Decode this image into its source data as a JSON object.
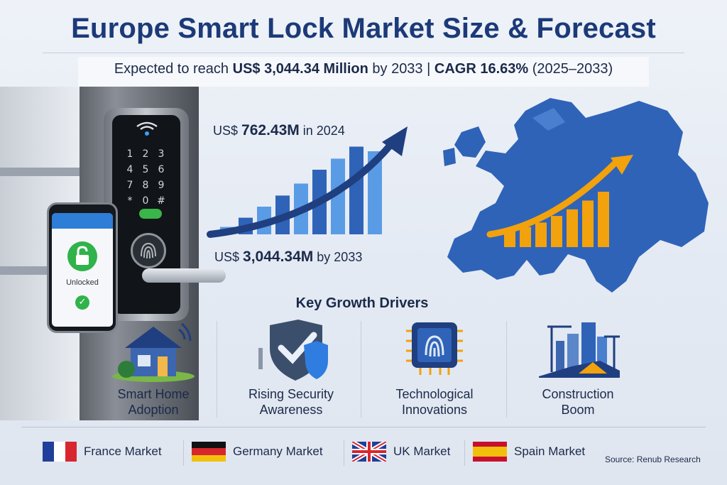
{
  "header": {
    "title": "Europe Smart Lock Market Size & Forecast",
    "subtitle_prefix": "Expected to reach ",
    "subtitle_value": "US$ 3,044.34 Million",
    "subtitle_mid": " by 2033 | ",
    "subtitle_cagr": "CAGR 16.63%",
    "subtitle_period": " (2025–2033)"
  },
  "device": {
    "keypad": [
      "1",
      "2",
      "3",
      "4",
      "5",
      "6",
      "7",
      "8",
      "9",
      "*",
      "0",
      "#"
    ],
    "phone_status": "Unlocked"
  },
  "growth": {
    "start_prefix": "US$ ",
    "start_value": "762.43M",
    "start_suffix": " in 2024",
    "end_prefix": "US$ ",
    "end_value": "3,044.34M",
    "end_suffix": " by 2033",
    "bar_levels": [
      0.08,
      0.18,
      0.3,
      0.42,
      0.55,
      0.7,
      0.82,
      0.95,
      0.9
    ]
  },
  "drivers": {
    "title": "Key Growth Drivers",
    "items": [
      {
        "label": "Smart Home\nAdoption",
        "icon": "smart-home-icon"
      },
      {
        "label": "Rising Security\nAwareness",
        "icon": "security-shield-icon"
      },
      {
        "label": "Technological\nInnovations",
        "icon": "fingerprint-chip-icon"
      },
      {
        "label": "Construction\nBoom",
        "icon": "construction-city-icon"
      }
    ]
  },
  "markets": [
    {
      "label": "France Market",
      "flag": "france-flag-icon"
    },
    {
      "label": "Germany Market",
      "flag": "germany-flag-icon"
    },
    {
      "label": "UK Market",
      "flag": "uk-flag-icon"
    },
    {
      "label": "Spain Market",
      "flag": "spain-flag-icon"
    }
  ],
  "source": "Source: Renub Research",
  "colors": {
    "title_blue": "#1c3a78",
    "map_blue": "#2f63b8",
    "accent_orange": "#f2a20c",
    "lock_green": "#2fb34a"
  }
}
